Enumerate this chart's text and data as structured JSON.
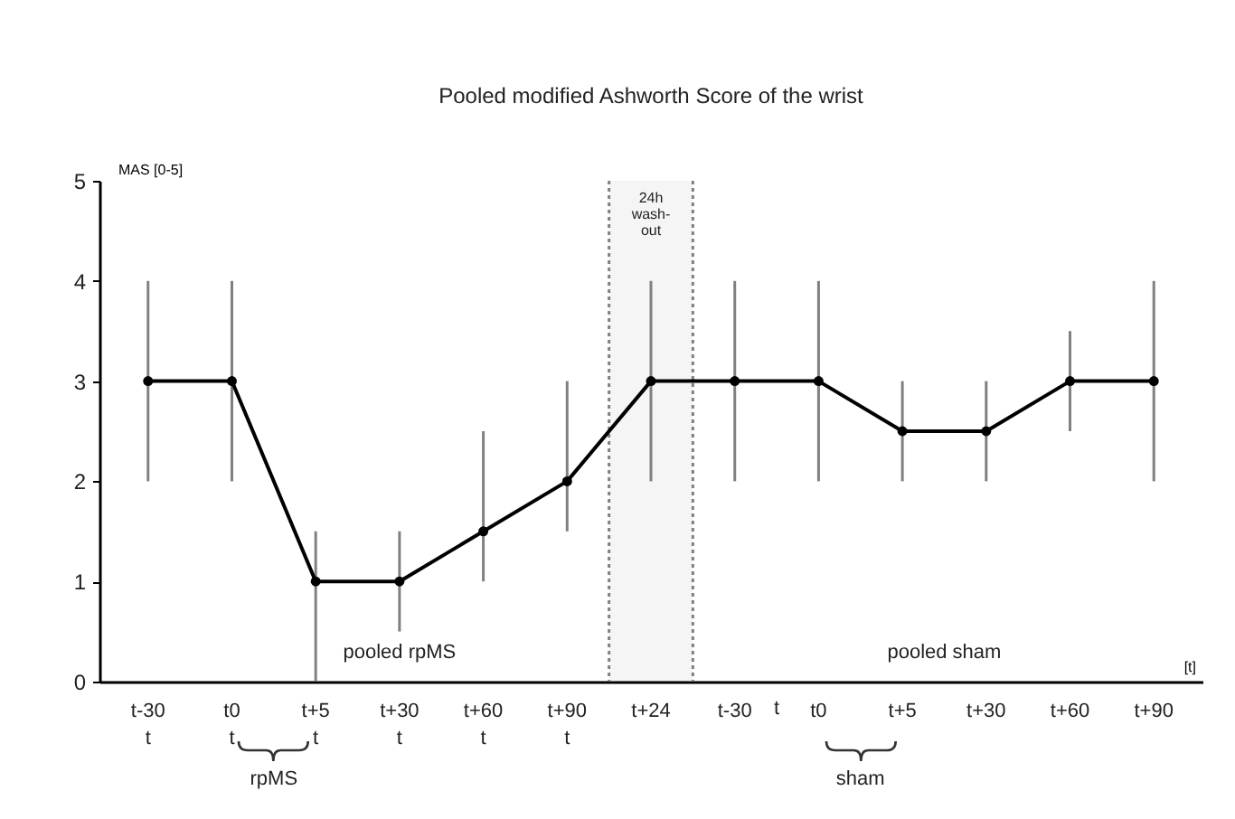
{
  "chart_data": {
    "type": "line",
    "title": "Pooled modified  Ashworth  Score of the wrist",
    "ylabel": "MAS [0-5]",
    "xlabel": "[t]",
    "categories": [
      "t-30\nt",
      "t0\nt",
      "t+5\nt",
      "t+30\nt",
      "t+60\nt",
      "t+90\nt",
      "t+24",
      "t-30",
      "t0",
      "t+5",
      "t+30",
      "t+60",
      "t+90"
    ],
    "ylim": [
      0,
      5
    ],
    "yticks": [
      0,
      1,
      2,
      3,
      4,
      5
    ],
    "series": [
      {
        "color": "#000000",
        "values": [
          3,
          3,
          1,
          1,
          1.5,
          2,
          3,
          3,
          3,
          2.5,
          2.5,
          3,
          3
        ],
        "errors": [
          [
            2,
            4
          ],
          [
            2,
            4
          ],
          [
            0,
            1.5
          ],
          [
            0.5,
            1.5
          ],
          [
            1,
            2.5
          ],
          [
            1.5,
            3
          ],
          [
            2,
            4
          ],
          [
            2,
            4
          ],
          [
            2,
            4
          ],
          [
            2,
            3
          ],
          [
            2,
            3
          ],
          [
            2.5,
            3.5
          ],
          [
            2,
            4
          ]
        ]
      }
    ],
    "marker": "circle",
    "line_style": "solid",
    "grid": false,
    "bands": [
      {
        "axis": "x",
        "from": "t+24",
        "to": "t+24",
        "label": "24h\nwash-\nout",
        "color": "#808080"
      }
    ],
    "annotations": [
      "pooled  rpMS",
      "pooled  sham",
      "rpMS",
      "sham",
      "t"
    ]
  }
}
